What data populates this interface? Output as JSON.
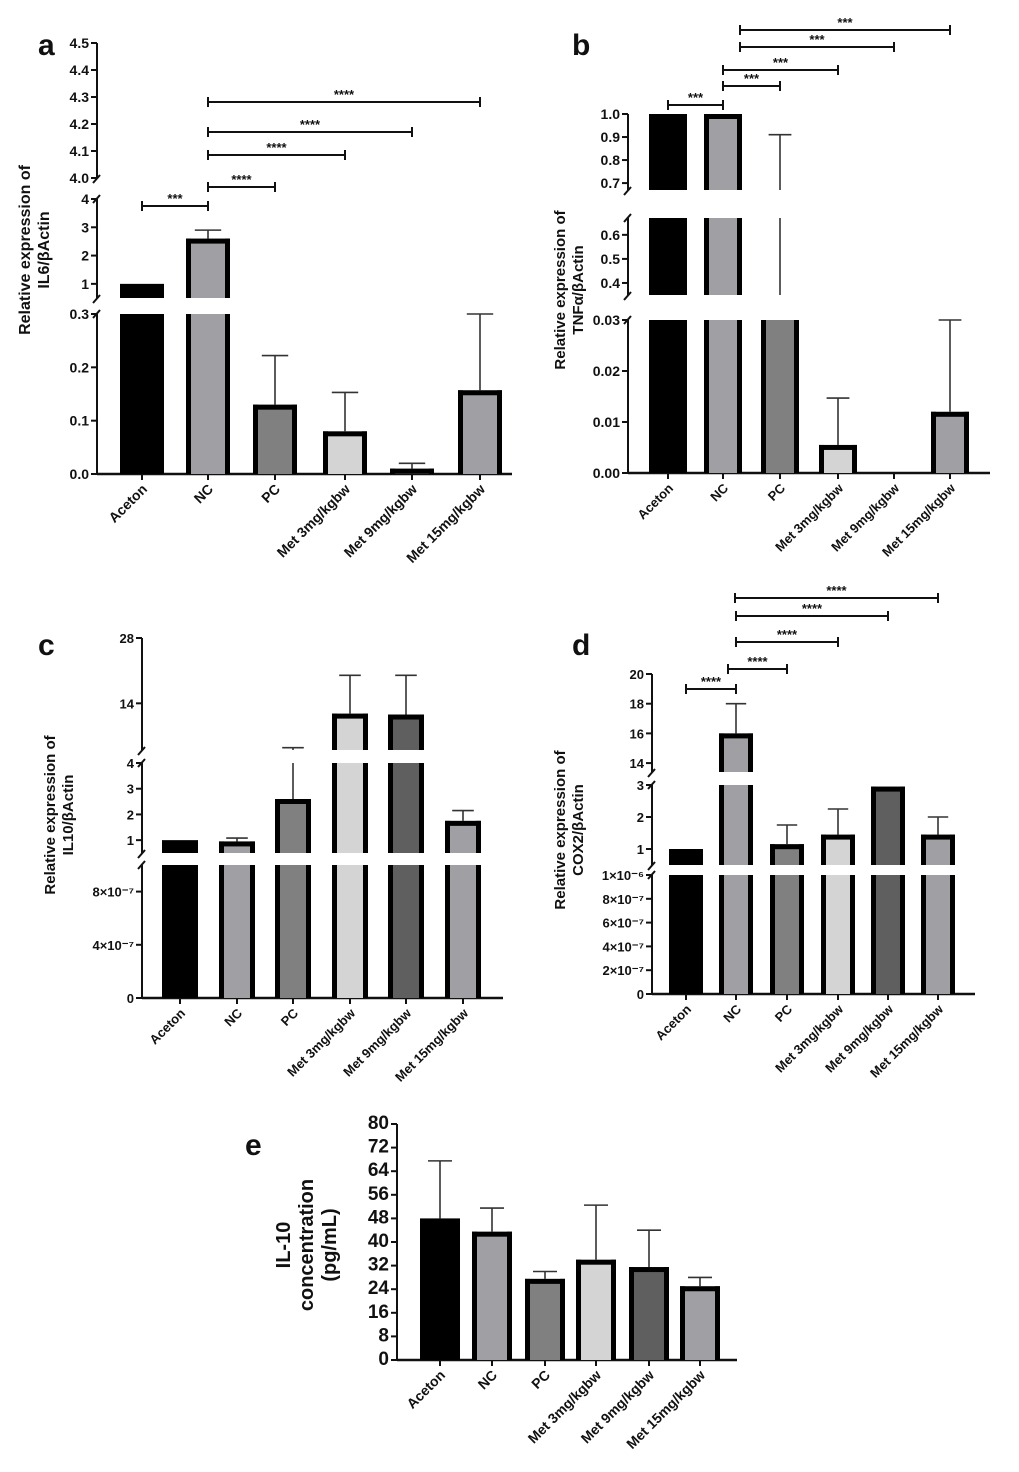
{
  "chart_data": [
    {
      "panel": "a",
      "type": "bar",
      "ylabel": [
        "Relative expression of",
        "IL6/βActin"
      ],
      "categories": [
        "Aceton",
        "NC",
        "PC",
        "Met 3mg/kgbw",
        "Met 9mg/kgbw",
        "Met 15mg/kgbw"
      ],
      "values": [
        1.0,
        2.6,
        0.13,
        0.08,
        0.01,
        0.157
      ],
      "error_upper": [
        null,
        2.9,
        0.222,
        0.153,
        0.02,
        0.3
      ],
      "colors": [
        "#000000",
        "#a0a0a4",
        "#808080",
        "#d4d4d4",
        "#5f5f5f",
        "#a0a0a4"
      ],
      "axis_segments": [
        [
          0,
          0.3
        ],
        [
          0.5,
          4
        ],
        [
          4.0,
          4.5
        ]
      ],
      "ticks": [
        [
          "0.0",
          "0.1",
          "0.2",
          "0.3"
        ],
        [
          "1",
          "2",
          "3",
          "4"
        ],
        [
          "4.0",
          "4.1",
          "4.2",
          "4.3",
          "4.4",
          "4.5"
        ]
      ],
      "significance": [
        {
          "from": 0,
          "to": 1,
          "label": "***"
        },
        {
          "from": 1,
          "to": 2,
          "label": "****"
        },
        {
          "from": 1,
          "to": 3,
          "label": "****"
        },
        {
          "from": 1,
          "to": 4,
          "label": "****"
        },
        {
          "from": 1,
          "to": 5,
          "label": "****"
        }
      ]
    },
    {
      "panel": "b",
      "type": "bar",
      "ylabel": [
        "Relative expression of",
        "TNFα/βActin"
      ],
      "categories": [
        "Aceton",
        "NC",
        "PC",
        "Met 3mg/kgbw",
        "Met 9mg/kgbw",
        "Met 15mg/kgbw"
      ],
      "values": [
        1.0,
        1.0,
        0.35,
        0.0055,
        0,
        0.012
      ],
      "error_upper": [
        null,
        null,
        0.91,
        0.0147,
        null,
        0.03
      ],
      "colors": [
        "#000000",
        "#a0a0a4",
        "#808080",
        "#d4d4d4",
        "#5f5f5f",
        "#a0a0a4"
      ],
      "axis_segments": [
        [
          0,
          0.03
        ],
        [
          0.35,
          0.67
        ],
        [
          0.67,
          1.0
        ]
      ],
      "ticks": [
        [
          "0.00",
          "0.01",
          "0.02",
          "0.03"
        ],
        [
          "0.4",
          "0.5",
          "0.6"
        ],
        [
          "0.7",
          "0.8",
          "0.9",
          "1.0"
        ]
      ],
      "significance": [
        {
          "from": 0,
          "to": 1,
          "label": "***"
        },
        {
          "from": 1,
          "to": 2,
          "label": "***"
        },
        {
          "from": 1,
          "to": 3,
          "label": "***"
        },
        {
          "from": 1,
          "to": 4,
          "label": "***"
        },
        {
          "from": 1,
          "to": 5,
          "label": "***"
        }
      ]
    },
    {
      "panel": "c",
      "type": "bar",
      "ylabel": [
        "Relative expression of",
        "IL10/βActin"
      ],
      "categories": [
        "Aceton",
        "NC",
        "PC",
        "Met 3mg/kgbw",
        "Met 9mg/kgbw",
        "Met 15mg/kgbw"
      ],
      "values": [
        1.0,
        0.95,
        2.6,
        11.8,
        11.6,
        1.75
      ],
      "error_upper": [
        null,
        1.08,
        4.5,
        20,
        20,
        2.15
      ],
      "colors": [
        "#000000",
        "#a0a0a4",
        "#808080",
        "#d4d4d4",
        "#5f5f5f",
        "#a0a0a4"
      ],
      "axis_segments": [
        [
          0,
          1e-06
        ],
        [
          0.5,
          4
        ],
        [
          4,
          28
        ]
      ],
      "ticks": [
        [
          "0",
          "4×10⁻⁷",
          "8×10⁻⁷"
        ],
        [
          "1",
          "2",
          "3",
          "4"
        ],
        [
          "14",
          "28"
        ]
      ],
      "significance": []
    },
    {
      "panel": "d",
      "type": "bar",
      "ylabel": [
        "Relative expression of",
        "COX2/βActin"
      ],
      "categories": [
        "Aceton",
        "NC",
        "PC",
        "Met 3mg/kgbw",
        "Met 9mg/kgbw",
        "Met 15mg/kgbw"
      ],
      "values": [
        1.0,
        16.0,
        1.15,
        1.45,
        2.95,
        1.45
      ],
      "error_upper": [
        null,
        18.0,
        1.75,
        2.25,
        null,
        2.0
      ],
      "colors": [
        "#000000",
        "#a0a0a4",
        "#808080",
        "#d4d4d4",
        "#5f5f5f",
        "#a0a0a4"
      ],
      "axis_segments": [
        [
          0,
          1e-06
        ],
        [
          0.5,
          3
        ],
        [
          13.4,
          20
        ]
      ],
      "ticks": [
        [
          "0",
          "2×10⁻⁷",
          "4×10⁻⁷",
          "6×10⁻⁷",
          "8×10⁻⁷",
          "1×10⁻⁶"
        ],
        [
          "1",
          "2",
          "3"
        ],
        [
          "14",
          "16",
          "18",
          "20"
        ]
      ],
      "significance": [
        {
          "from": 0,
          "to": 1,
          "label": "****"
        },
        {
          "from": 1,
          "to": 2,
          "label": "****"
        },
        {
          "from": 1,
          "to": 3,
          "label": "****"
        },
        {
          "from": 1,
          "to": 4,
          "label": "****"
        },
        {
          "from": 1,
          "to": 5,
          "label": "****"
        }
      ]
    },
    {
      "panel": "e",
      "type": "bar",
      "ylabel": [
        "IL-10",
        "concentration",
        "(pg/mL)"
      ],
      "categories": [
        "Aceton",
        "NC",
        "PC",
        "Met 3mg/kgbw",
        "Met 9mg/kgbw",
        "Met 15mg/kgbw"
      ],
      "values": [
        48,
        43.5,
        27.5,
        34,
        31.5,
        25
      ],
      "error_upper": [
        67.5,
        51.5,
        30,
        52.5,
        44,
        28
      ],
      "colors": [
        "#000000",
        "#a0a0a4",
        "#808080",
        "#d4d4d4",
        "#5f5f5f",
        "#a0a0a4"
      ],
      "axis_segments": [
        [
          0,
          80
        ]
      ],
      "ticks": [
        [
          "0",
          "8",
          "16",
          "24",
          "32",
          "40",
          "48",
          "56",
          "64",
          "72",
          "80"
        ]
      ],
      "significance": []
    }
  ]
}
